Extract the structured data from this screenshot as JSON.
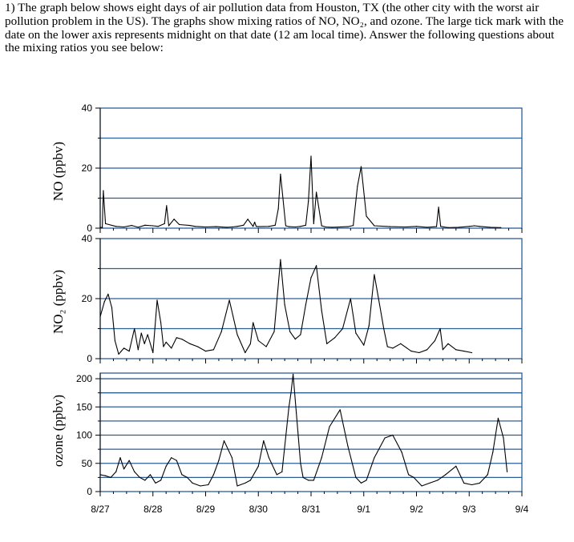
{
  "question_text": "1) The graph below shows eight days of air pollution data from Houston, TX (the other city with the worst air pollution problem in the US). The graphs show mixing ratios of NO, NO₂, and ozone. The large tick mark with the date on the lower axis represents midnight on that date (12 am local time). Answer the following questions about the mixing ratios you see below:",
  "colors": {
    "grid": "#2e5e96",
    "line": "#000000",
    "axis": "#000000"
  },
  "chart_data": [
    {
      "type": "line",
      "panel": "NO",
      "ylabel": "NO (ppbv)",
      "ylim": [
        0,
        40
      ],
      "yticks": [
        "0",
        "20",
        "40"
      ],
      "ytick_values": [
        0,
        20,
        40
      ],
      "gridlines": [
        10,
        30
      ],
      "grid": true,
      "x": [
        0,
        0.04,
        0.06,
        0.1,
        0.3,
        0.45,
        0.6,
        0.72,
        0.85,
        1.0,
        1.1,
        1.22,
        1.26,
        1.3,
        1.4,
        1.5,
        1.7,
        1.8,
        2.0,
        2.2,
        2.4,
        2.5,
        2.6,
        2.72,
        2.8,
        2.9,
        2.93,
        2.96,
        3.0,
        3.2,
        3.32,
        3.38,
        3.42,
        3.52,
        3.58,
        3.7,
        3.8,
        3.9,
        3.95,
        4.0,
        4.05,
        4.1,
        4.2,
        4.28,
        4.4,
        4.7,
        4.8,
        4.88,
        4.95,
        5.05,
        5.2,
        5.5,
        5.8,
        6.0,
        6.2,
        6.38,
        6.42,
        6.46,
        6.52,
        6.6,
        6.8,
        7.0,
        7.1,
        7.2,
        7.4,
        7.6
      ],
      "values": [
        0.3,
        0.2,
        12.5,
        1.5,
        0.6,
        0.4,
        0.9,
        0.3,
        1.0,
        0.8,
        0.6,
        1.5,
        7.5,
        0.8,
        3.0,
        1.2,
        0.9,
        0.6,
        0.4,
        0.5,
        0.3,
        0.4,
        0.6,
        1.0,
        3.0,
        0.6,
        2.0,
        0.6,
        0.5,
        0.6,
        1.0,
        6.5,
        18.0,
        0.8,
        0.5,
        0.4,
        0.6,
        1.0,
        9.0,
        24.0,
        1.5,
        12.0,
        0.8,
        0.4,
        0.3,
        0.5,
        0.9,
        14.0,
        20.5,
        4.0,
        0.8,
        0.5,
        0.4,
        0.6,
        0.3,
        0.5,
        7.0,
        0.6,
        0.4,
        0.2,
        0.3,
        0.6,
        0.8,
        0.6,
        0.3,
        0.2
      ]
    },
    {
      "type": "line",
      "panel": "NO2",
      "ylabel": "NO₂ (ppbv)",
      "ylim": [
        0,
        40
      ],
      "yticks": [
        "0",
        "20",
        "40"
      ],
      "ytick_values": [
        0,
        20,
        40
      ],
      "gridlines": [
        10,
        30
      ],
      "grid": true,
      "x": [
        0,
        0.08,
        0.15,
        0.22,
        0.28,
        0.35,
        0.4,
        0.45,
        0.55,
        0.65,
        0.72,
        0.78,
        0.84,
        0.9,
        1.0,
        1.08,
        1.15,
        1.2,
        1.25,
        1.35,
        1.45,
        1.55,
        1.7,
        1.85,
        2.0,
        2.15,
        2.3,
        2.45,
        2.6,
        2.75,
        2.85,
        2.9,
        3.0,
        3.15,
        3.3,
        3.42,
        3.5,
        3.6,
        3.7,
        3.8,
        3.9,
        4.0,
        4.1,
        4.2,
        4.3,
        4.45,
        4.6,
        4.75,
        4.85,
        5.0,
        5.1,
        5.2,
        5.3,
        5.38,
        5.45,
        5.55,
        5.7,
        5.9,
        6.05,
        6.2,
        6.35,
        6.45,
        6.5,
        6.6,
        6.75,
        6.9,
        7.05
      ],
      "values": [
        14.0,
        19.0,
        21.5,
        17.0,
        6.0,
        1.5,
        2.5,
        3.5,
        2.5,
        10.0,
        3.0,
        8.5,
        5.0,
        8.0,
        2.0,
        19.5,
        12.0,
        4.0,
        5.5,
        3.5,
        7.0,
        6.5,
        5.0,
        4.0,
        2.5,
        3.0,
        9.0,
        19.5,
        8.0,
        2.0,
        5.0,
        12.0,
        6.0,
        4.0,
        9.0,
        33.0,
        18.0,
        9.0,
        6.5,
        8.0,
        18.0,
        27.0,
        31.0,
        16.0,
        5.0,
        7.0,
        10.0,
        20.0,
        8.5,
        4.5,
        11.0,
        28.0,
        18.0,
        10.0,
        4.0,
        3.5,
        5.0,
        2.5,
        2.0,
        3.0,
        6.0,
        10.0,
        3.0,
        5.0,
        3.0,
        2.5,
        2.0
      ]
    },
    {
      "type": "line",
      "panel": "ozone",
      "ylabel": "ozone (ppbv)",
      "ylim": [
        0,
        210
      ],
      "yticks": [
        "0",
        "50",
        "100",
        "150",
        "200"
      ],
      "ytick_values": [
        0,
        50,
        100,
        150,
        200
      ],
      "gridlines": [
        25,
        75,
        125,
        175
      ],
      "grid": true,
      "categories": [
        "8/27",
        "8/28",
        "8/29",
        "8/30",
        "8/31",
        "9/1",
        "9/2",
        "9/3",
        "9/4"
      ],
      "x": [
        0,
        0.1,
        0.2,
        0.3,
        0.38,
        0.45,
        0.55,
        0.65,
        0.75,
        0.85,
        0.95,
        1.05,
        1.15,
        1.25,
        1.35,
        1.45,
        1.55,
        1.65,
        1.75,
        1.9,
        2.05,
        2.15,
        2.25,
        2.35,
        2.5,
        2.6,
        2.75,
        2.85,
        3.0,
        3.1,
        3.2,
        3.35,
        3.45,
        3.58,
        3.62,
        3.66,
        3.72,
        3.8,
        3.85,
        3.95,
        4.05,
        4.2,
        4.35,
        4.55,
        4.7,
        4.85,
        4.95,
        5.05,
        5.2,
        5.4,
        5.55,
        5.72,
        5.85,
        5.95,
        6.1,
        6.25,
        6.4,
        6.55,
        6.75,
        6.9,
        7.05,
        7.2,
        7.35,
        7.45,
        7.55,
        7.65,
        7.72
      ],
      "values": [
        30,
        28,
        25,
        35,
        60,
        40,
        55,
        35,
        25,
        20,
        30,
        15,
        20,
        45,
        60,
        55,
        30,
        25,
        15,
        10,
        12,
        30,
        55,
        90,
        60,
        10,
        15,
        20,
        45,
        90,
        60,
        30,
        35,
        150,
        175,
        208,
        140,
        50,
        25,
        20,
        20,
        60,
        115,
        145,
        80,
        25,
        15,
        20,
        60,
        95,
        100,
        70,
        30,
        25,
        10,
        15,
        20,
        30,
        45,
        15,
        12,
        15,
        30,
        70,
        130,
        95,
        35
      ]
    }
  ]
}
